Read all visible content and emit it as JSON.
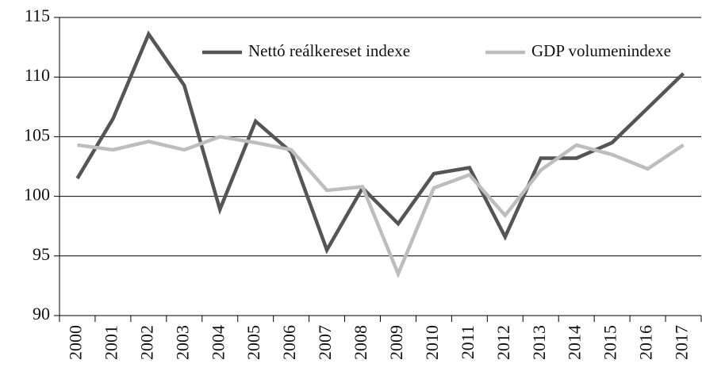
{
  "chart_data": {
    "type": "line",
    "categories": [
      "2000",
      "2001",
      "2002",
      "2003",
      "2004",
      "2005",
      "2006",
      "2007",
      "2008",
      "2009",
      "2010",
      "2011",
      "2012",
      "2013",
      "2014",
      "2015",
      "2016",
      "2017"
    ],
    "series": [
      {
        "name": "Nettó reálkereset indexe",
        "color": "#555555",
        "values": [
          101.5,
          106.5,
          113.6,
          109.3,
          98.9,
          106.3,
          103.7,
          95.5,
          100.7,
          97.7,
          101.9,
          102.4,
          96.6,
          103.2,
          103.2,
          104.5,
          107.4,
          110.3
        ]
      },
      {
        "name": "GDP volumenindexe",
        "color": "#bdbdbd",
        "values": [
          104.3,
          103.9,
          104.6,
          103.9,
          105.0,
          104.5,
          103.9,
          100.5,
          100.8,
          93.5,
          100.7,
          101.8,
          98.4,
          102.2,
          104.3,
          103.5,
          102.3,
          104.3
        ]
      }
    ],
    "ylim": [
      90,
      115
    ],
    "yticks": [
      90,
      95,
      100,
      105,
      110,
      115
    ],
    "grid": true
  }
}
